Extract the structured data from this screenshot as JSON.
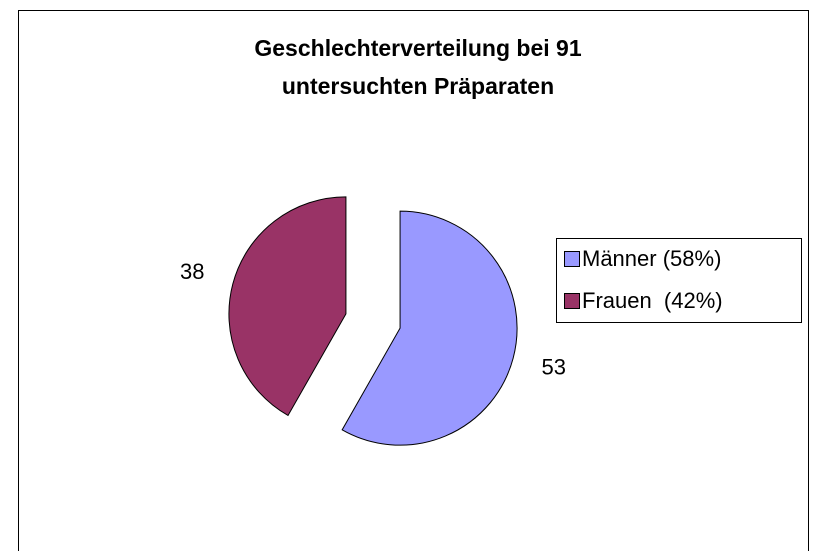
{
  "chart_data": {
    "type": "pie",
    "title": [
      "Geschlechterverteilung bei 91",
      "untersuchten Präparaten"
    ],
    "categories": [
      "Männer (58%)",
      "Frauen  (42%)"
    ],
    "values": [
      53,
      38
    ],
    "colors": [
      "#9999ff",
      "#993366"
    ],
    "exploded": true,
    "legend": "right"
  }
}
